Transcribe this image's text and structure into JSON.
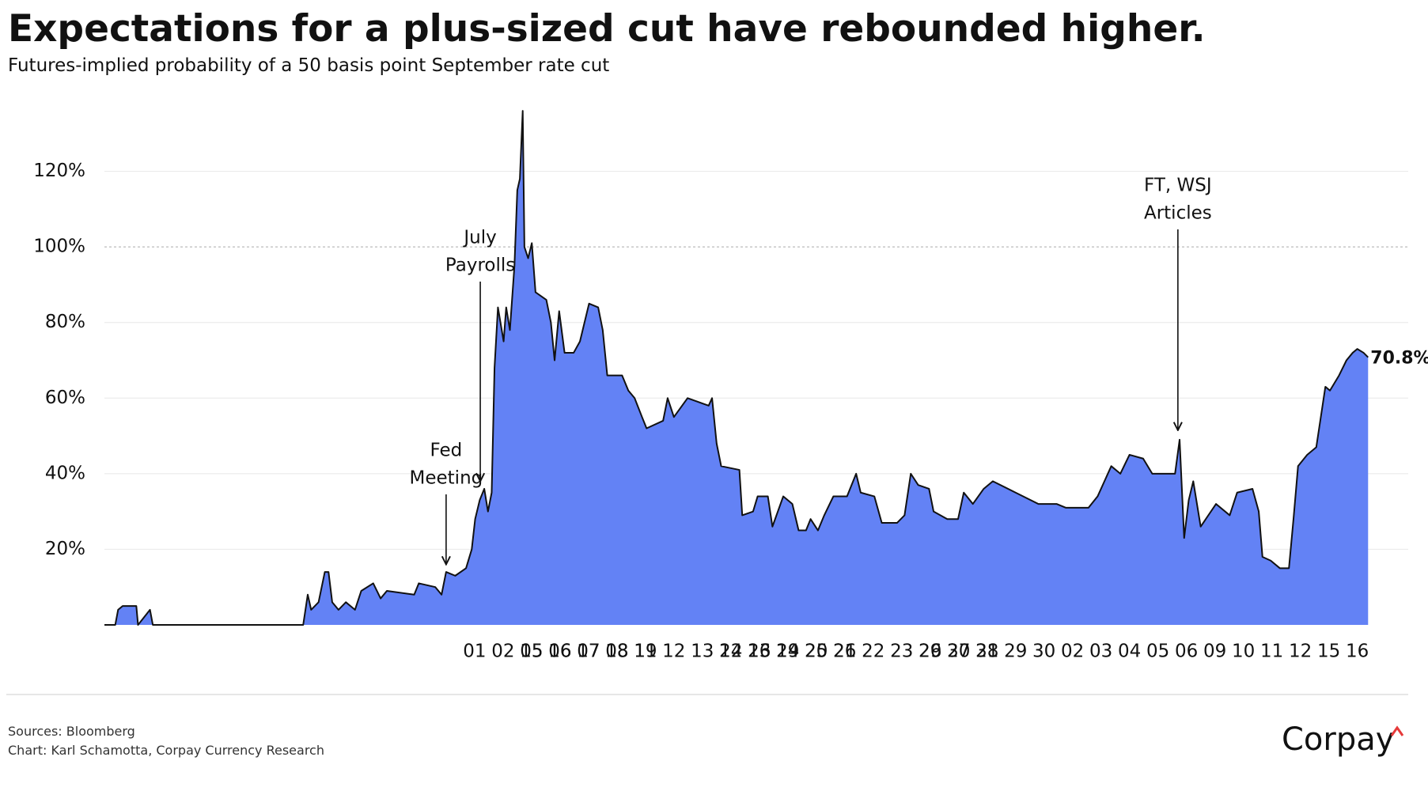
{
  "chart_data": {
    "type": "area",
    "title": "Expectations for a plus-sized cut have rebounded higher.",
    "subtitle": "Futures-implied probability of a 50 basis point September rate cut",
    "source": "Sources: Bloomberg",
    "credit": "Chart: Karl Schamotta, Corpay Currency Research",
    "brand": "Corpay",
    "grid": true,
    "reference_line": 100,
    "xlim": [
      0,
      44.4
    ],
    "ylim": [
      0,
      140
    ],
    "yticks": [
      {
        "value": 20,
        "label": "20%"
      },
      {
        "value": 40,
        "label": "40%"
      },
      {
        "value": 60,
        "label": "60%"
      },
      {
        "value": 80,
        "label": "80%"
      },
      {
        "value": 100,
        "label": "100%"
      },
      {
        "value": 120,
        "label": "120%"
      }
    ],
    "xticks": [
      15,
      16,
      17,
      18,
      19,
      22,
      23,
      24,
      25,
      26,
      29,
      30,
      31,
      {
        "value": 13,
        "label": "01"
      },
      {
        "value": 14,
        "label": "02"
      },
      {
        "value": 15,
        "label": "05"
      },
      {
        "value": 16,
        "label": "06"
      },
      {
        "value": 17,
        "label": "07"
      },
      {
        "value": 18,
        "label": "08"
      },
      {
        "value": 19,
        "label": "11"
      },
      {
        "value": 20,
        "label": "12"
      },
      {
        "value": 21,
        "label": "13"
      },
      {
        "value": 22,
        "label": "14"
      },
      {
        "value": 23,
        "label": "16"
      },
      {
        "value": 24,
        "label": "19"
      },
      {
        "value": 25,
        "label": "20"
      },
      {
        "value": 26,
        "label": "21"
      },
      {
        "value": 27,
        "label": "22"
      },
      {
        "value": 28,
        "label": "23"
      },
      {
        "value": 29,
        "label": "26"
      },
      {
        "value": 30,
        "label": "27"
      },
      {
        "value": 31,
        "label": "28"
      },
      {
        "value": 32,
        "label": "29"
      },
      {
        "value": 33,
        "label": "30"
      },
      {
        "value": 34,
        "label": "02"
      },
      {
        "value": 35,
        "label": "03"
      },
      {
        "value": 36,
        "label": "04"
      },
      {
        "value": 37,
        "label": "05"
      },
      {
        "value": 38,
        "label": "06"
      },
      {
        "value": 39,
        "label": "09"
      },
      {
        "value": 40,
        "label": "10"
      },
      {
        "value": 41,
        "label": "11"
      },
      {
        "value": 42,
        "label": "12"
      },
      {
        "value": 43,
        "label": "15"
      },
      {
        "value": 44,
        "label": "16"
      }
    ],
    "series": [
      {
        "color": "#6382f5",
        "line_color": "#111111",
        "end_label": "70.8%",
        "x": [
          0,
          0.38,
          0.48,
          0.64,
          1.12,
          1.18,
          1.6,
          1.7,
          6.98,
          7.14,
          7.26,
          7.52,
          7.74,
          7.87,
          8.0,
          8.22,
          8.48,
          8.8,
          9.02,
          9.44,
          9.7,
          9.92,
          10.88,
          11.04,
          11.62,
          11.84,
          12.0,
          12.32,
          12.7,
          12.9,
          13.02,
          13.18,
          13.34,
          13.47,
          13.6,
          13.7,
          13.82,
          14.02,
          14.11,
          14.24,
          14.4,
          14.5,
          14.59,
          14.69,
          14.75,
          14.88,
          15.01,
          15.14,
          15.52,
          15.68,
          15.81,
          15.97,
          16.16,
          16.48,
          16.7,
          17.02,
          17.34,
          17.5,
          17.66,
          18.18,
          18.4,
          18.62,
          18.88,
          19.04,
          19.62,
          19.78,
          20.0,
          20.48,
          21.22,
          21.34,
          21.5,
          21.66,
          22.3,
          22.4,
          22.78,
          22.94,
          23.3,
          23.46,
          23.84,
          24.16,
          24.38,
          24.64,
          24.8,
          25.06,
          25.28,
          25.6,
          26.08,
          26.4,
          26.56,
          27.04,
          27.3,
          27.84,
          28.1,
          28.32,
          28.58,
          28.96,
          29.12,
          29.6,
          29.98,
          30.18,
          30.5,
          30.88,
          31.2,
          32.0,
          32.8,
          33.44,
          33.76,
          34.56,
          34.88,
          35.36,
          35.68,
          36.0,
          36.48,
          36.8,
          37.6,
          37.76,
          37.92,
          38.08,
          38.24,
          38.5,
          39.04,
          39.52,
          39.78,
          40.32,
          40.54,
          40.67,
          40.96,
          41.28,
          41.6,
          41.76,
          41.92,
          42.24,
          42.56,
          42.88,
          43.04,
          43.36,
          43.62,
          43.84,
          44.0,
          44.22,
          44.38
        ],
        "values": [
          0,
          0,
          4,
          5,
          5,
          0,
          4,
          0,
          0,
          8,
          4,
          6,
          14,
          14,
          6,
          4,
          6,
          4,
          9,
          11,
          7,
          9,
          8,
          11,
          10,
          8,
          14,
          13,
          15,
          20,
          28,
          33,
          36,
          30,
          35,
          68,
          84,
          75,
          84,
          78,
          95,
          115,
          118,
          136,
          100,
          97,
          101,
          88,
          86,
          80,
          70,
          83,
          72,
          72,
          75,
          85,
          84,
          78,
          66,
          66,
          62,
          60,
          55,
          52,
          54,
          60,
          55,
          60,
          58,
          60,
          48,
          42,
          41,
          29,
          30,
          34,
          34,
          26,
          34,
          32,
          25,
          25,
          28,
          25,
          29,
          34,
          34,
          40,
          35,
          34,
          27,
          27,
          29,
          40,
          37,
          36,
          30,
          28,
          28,
          35,
          32,
          36,
          38,
          35,
          32,
          32,
          31,
          31,
          34,
          42,
          40,
          45,
          44,
          40,
          40,
          49,
          23,
          33,
          38,
          26,
          32,
          29,
          35,
          36,
          30,
          18,
          17,
          15,
          15,
          28,
          42,
          45,
          47,
          63,
          62,
          66,
          70,
          72,
          73,
          72,
          70.8
        ]
      }
    ],
    "annotations": [
      {
        "text": [
          "Fed",
          "Meeting"
        ],
        "x": 12.0,
        "y": 16
      },
      {
        "text": [
          "July",
          "Payrolls"
        ],
        "x": 13.2,
        "y": 38
      },
      {
        "text": [
          "FT, WSJ",
          "Articles"
        ],
        "x": 37.7,
        "y": 51.5
      }
    ]
  }
}
